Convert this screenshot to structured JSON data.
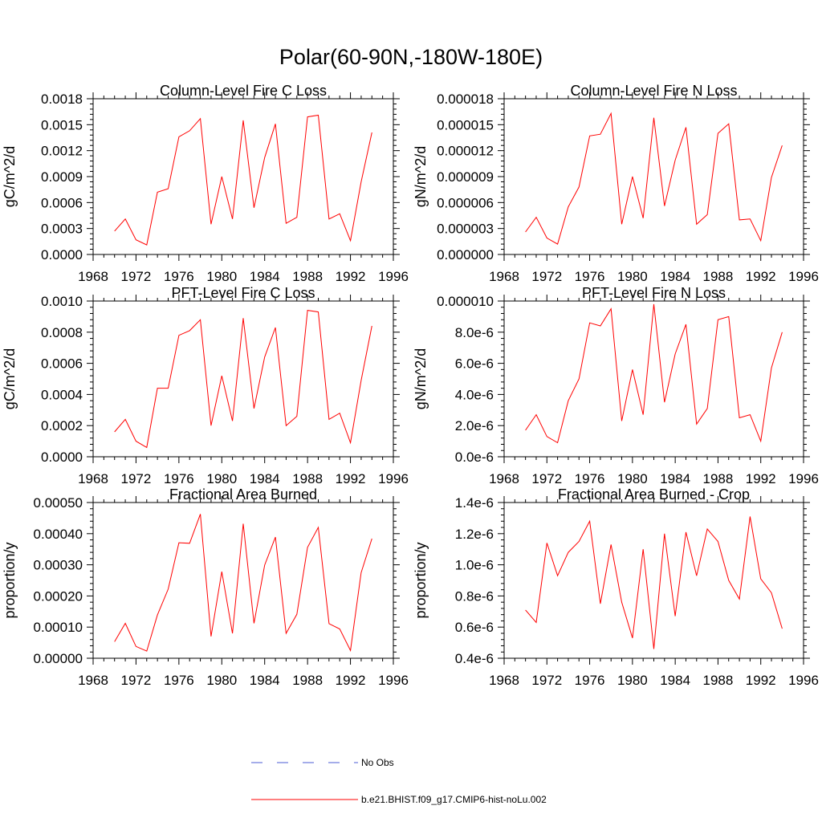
{
  "figure_title": "Polar(60-90N,-180W-180E)",
  "colors": {
    "model": "#ff0000",
    "obs": "#4b5bd6",
    "axis": "#000000"
  },
  "legend": [
    {
      "label": "No Obs",
      "style": "dashed",
      "color": "#4b5bd6"
    },
    {
      "label": "b.e21.BHIST.f09_g17.CMIP6-hist-noLu.002",
      "style": "solid",
      "color": "#ff0000"
    }
  ],
  "chart_data": [
    {
      "type": "line",
      "title": "Column-Level Fire C Loss",
      "ylabel": "gC/m^2/d",
      "xlim": [
        1968,
        1996
      ],
      "xticks": [
        "1968",
        "1972",
        "1976",
        "1980",
        "1984",
        "1988",
        "1992",
        "1996"
      ],
      "ylim": [
        0,
        0.0018
      ],
      "yticks": [
        0,
        0.0003,
        0.0006,
        0.0009,
        0.0012,
        0.0015,
        0.0018
      ],
      "ytick_labels": [
        "0.0000",
        "0.0003",
        "0.0006",
        "0.0009",
        "0.0012",
        "0.0015",
        "0.0018"
      ],
      "x": [
        1970,
        1971,
        1972,
        1973,
        1974,
        1975,
        1976,
        1977,
        1978,
        1979,
        1980,
        1981,
        1982,
        1983,
        1984,
        1985,
        1986,
        1987,
        1988,
        1989,
        1990,
        1991,
        1992,
        1993,
        1994
      ],
      "series": [
        {
          "name": "b.e21.BHIST.f09_g17.CMIP6-hist-noLu.002",
          "values": [
            0.00027,
            0.00041,
            0.00017,
            0.00011,
            0.00072,
            0.00076,
            0.00136,
            0.00143,
            0.00157,
            0.00035,
            0.0009,
            0.00041,
            0.00155,
            0.00054,
            0.00112,
            0.00151,
            0.00036,
            0.00043,
            0.00159,
            0.00161,
            0.00041,
            0.00047,
            0.00016,
            0.00084,
            0.00141
          ]
        }
      ]
    },
    {
      "type": "line",
      "title": "Column-Level Fire N Loss",
      "ylabel": "gN/m^2/d",
      "xlim": [
        1968,
        1996
      ],
      "xticks": [
        "1968",
        "1972",
        "1976",
        "1980",
        "1984",
        "1988",
        "1992",
        "1996"
      ],
      "ylim": [
        0,
        1.8e-05
      ],
      "yticks": [
        0,
        3e-06,
        6e-06,
        9e-06,
        1.2e-05,
        1.5e-05,
        1.8e-05
      ],
      "ytick_labels": [
        "0.000000",
        "0.000003",
        "0.000006",
        "0.000009",
        "0.000012",
        "0.000015",
        "0.000018"
      ],
      "x": [
        1970,
        1971,
        1972,
        1973,
        1974,
        1975,
        1976,
        1977,
        1978,
        1979,
        1980,
        1981,
        1982,
        1983,
        1984,
        1985,
        1986,
        1987,
        1988,
        1989,
        1990,
        1991,
        1992,
        1993,
        1994
      ],
      "series": [
        {
          "name": "b.e21.BHIST.f09_g17.CMIP6-hist-noLu.002",
          "values": [
            2.6e-06,
            4.3e-06,
            1.9e-06,
            1.2e-06,
            5.5e-06,
            7.8e-06,
            1.37e-05,
            1.39e-05,
            1.63e-05,
            3.5e-06,
            9e-06,
            4.2e-06,
            1.58e-05,
            5.6e-06,
            1.09e-05,
            1.47e-05,
            3.5e-06,
            4.6e-06,
            1.4e-05,
            1.51e-05,
            4e-06,
            4.1e-06,
            1.6e-06,
            8.9e-06,
            1.26e-05
          ]
        }
      ]
    },
    {
      "type": "line",
      "title": "PFT-Level Fire C Loss",
      "ylabel": "gC/m^2/d",
      "xlim": [
        1968,
        1996
      ],
      "xticks": [
        "1968",
        "1972",
        "1976",
        "1980",
        "1984",
        "1988",
        "1992",
        "1996"
      ],
      "ylim": [
        0,
        0.001
      ],
      "yticks": [
        0,
        0.0002,
        0.0004,
        0.0006,
        0.0008,
        0.001
      ],
      "ytick_labels": [
        "0.0000",
        "0.0002",
        "0.0004",
        "0.0006",
        "0.0008",
        "0.0010"
      ],
      "x": [
        1970,
        1971,
        1972,
        1973,
        1974,
        1975,
        1976,
        1977,
        1978,
        1979,
        1980,
        1981,
        1982,
        1983,
        1984,
        1985,
        1986,
        1987,
        1988,
        1989,
        1990,
        1991,
        1992,
        1993,
        1994
      ],
      "series": [
        {
          "name": "b.e21.BHIST.f09_g17.CMIP6-hist-noLu.002",
          "values": [
            0.00016,
            0.00024,
            0.0001,
            6e-05,
            0.00044,
            0.00044,
            0.00078,
            0.00081,
            0.00088,
            0.0002,
            0.00052,
            0.00023,
            0.00089,
            0.00031,
            0.00064,
            0.00083,
            0.0002,
            0.00026,
            0.00094,
            0.00093,
            0.00024,
            0.00028,
            9e-05,
            0.00049,
            0.00084
          ]
        }
      ]
    },
    {
      "type": "line",
      "title": "PFT-Level Fire N Loss",
      "ylabel": "gN/m^2/d",
      "xlim": [
        1968,
        1996
      ],
      "xticks": [
        "1968",
        "1972",
        "1976",
        "1980",
        "1984",
        "1988",
        "1992",
        "1996"
      ],
      "ylim": [
        0,
        1e-05
      ],
      "yticks": [
        0,
        2e-06,
        4e-06,
        6e-06,
        8e-06,
        1e-05
      ],
      "ytick_labels": [
        "0.0e-6",
        "2.0e-6",
        "4.0e-6",
        "6.0e-6",
        "8.0e-6",
        "0.000010"
      ],
      "x": [
        1970,
        1971,
        1972,
        1973,
        1974,
        1975,
        1976,
        1977,
        1978,
        1979,
        1980,
        1981,
        1982,
        1983,
        1984,
        1985,
        1986,
        1987,
        1988,
        1989,
        1990,
        1991,
        1992,
        1993,
        1994
      ],
      "series": [
        {
          "name": "b.e21.BHIST.f09_g17.CMIP6-hist-noLu.002",
          "values": [
            1.7e-06,
            2.7e-06,
            1.3e-06,
            9e-07,
            3.6e-06,
            5e-06,
            8.6e-06,
            8.4e-06,
            9.5e-06,
            2.3e-06,
            5.6e-06,
            2.7e-06,
            9.8e-06,
            3.5e-06,
            6.6e-06,
            8.5e-06,
            2.1e-06,
            3.1e-06,
            8.8e-06,
            9e-06,
            2.5e-06,
            2.7e-06,
            1e-06,
            5.7e-06,
            8e-06
          ]
        }
      ]
    },
    {
      "type": "line",
      "title": "Fractional Area Burned",
      "ylabel": "proportion/y",
      "xlim": [
        1968,
        1996
      ],
      "xticks": [
        "1968",
        "1972",
        "1976",
        "1980",
        "1984",
        "1988",
        "1992",
        "1996"
      ],
      "ylim": [
        0,
        0.0005
      ],
      "yticks": [
        0,
        0.0001,
        0.0002,
        0.0003,
        0.0004,
        0.0005
      ],
      "ytick_labels": [
        "0.00000",
        "0.00010",
        "0.00020",
        "0.00030",
        "0.00040",
        "0.00050"
      ],
      "x": [
        1970,
        1971,
        1972,
        1973,
        1974,
        1975,
        1976,
        1977,
        1978,
        1979,
        1980,
        1981,
        1982,
        1983,
        1984,
        1985,
        1986,
        1987,
        1988,
        1989,
        1990,
        1991,
        1992,
        1993,
        1994
      ],
      "series": [
        {
          "name": "b.e21.BHIST.f09_g17.CMIP6-hist-noLu.002",
          "values": [
            5.3e-05,
            0.000112,
            3.8e-05,
            2.3e-05,
            0.000139,
            0.000222,
            0.000371,
            0.000369,
            0.000463,
            7e-05,
            0.000278,
            8e-05,
            0.000432,
            0.000112,
            0.000299,
            0.000389,
            8e-05,
            0.000141,
            0.000356,
            0.00042,
            0.000111,
            9.4e-05,
            2.5e-05,
            0.000275,
            0.000384
          ]
        }
      ]
    },
    {
      "type": "line",
      "title": "Fractional Area Burned - Crop",
      "ylabel": "proportion/y",
      "xlim": [
        1968,
        1996
      ],
      "xticks": [
        "1968",
        "1972",
        "1976",
        "1980",
        "1984",
        "1988",
        "1992",
        "1996"
      ],
      "ylim": [
        4e-07,
        1.4e-06
      ],
      "yticks": [
        4e-07,
        6e-07,
        8e-07,
        1e-06,
        1.2e-06,
        1.4e-06
      ],
      "ytick_labels": [
        "0.4e-6",
        "0.6e-6",
        "0.8e-6",
        "1.0e-6",
        "1.2e-6",
        "1.4e-6"
      ],
      "x": [
        1970,
        1971,
        1972,
        1973,
        1974,
        1975,
        1976,
        1977,
        1978,
        1979,
        1980,
        1981,
        1982,
        1983,
        1984,
        1985,
        1986,
        1987,
        1988,
        1989,
        1990,
        1991,
        1992,
        1993,
        1994
      ],
      "series": [
        {
          "name": "b.e21.BHIST.f09_g17.CMIP6-hist-noLu.002",
          "values": [
            7.1e-07,
            6.3e-07,
            1.14e-06,
            9.3e-07,
            1.08e-06,
            1.15e-06,
            1.28e-06,
            7.5e-07,
            1.13e-06,
            7.6e-07,
            5.3e-07,
            1.1e-06,
            4.6e-07,
            1.2e-06,
            6.7e-07,
            1.21e-06,
            9.3e-07,
            1.23e-06,
            1.15e-06,
            9e-07,
            7.8e-07,
            1.31e-06,
            9.1e-07,
            8.2e-07,
            5.9e-07
          ]
        }
      ]
    }
  ]
}
